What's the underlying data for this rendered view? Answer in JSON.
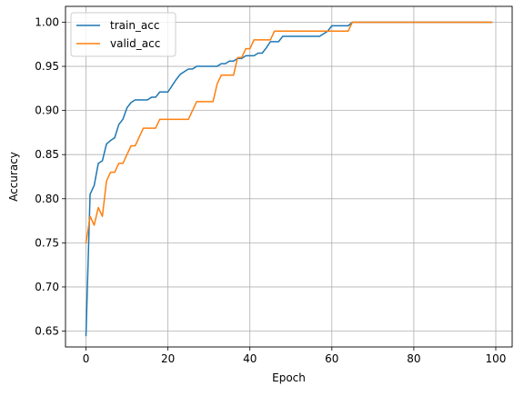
{
  "chart_data": {
    "type": "line",
    "title": "",
    "xlabel": "Epoch",
    "ylabel": "Accuracy",
    "xlim": [
      -5,
      104
    ],
    "ylim": [
      0.632,
      1.018
    ],
    "xticks": [
      0,
      20,
      40,
      60,
      80,
      100
    ],
    "xtick_labels": [
      "0",
      "20",
      "40",
      "60",
      "80",
      "100"
    ],
    "yticks": [
      0.65,
      0.7,
      0.75,
      0.8,
      0.85,
      0.9,
      0.95,
      1.0
    ],
    "ytick_labels": [
      "0.65",
      "0.70",
      "0.75",
      "0.80",
      "0.85",
      "0.90",
      "0.95",
      "1.00"
    ],
    "grid": true,
    "legend_position": "upper left",
    "series": [
      {
        "name": "train_acc",
        "color": "#1f77b4",
        "x": [
          0,
          1,
          2,
          3,
          4,
          5,
          6,
          7,
          8,
          9,
          10,
          11,
          12,
          13,
          14,
          15,
          16,
          17,
          18,
          19,
          20,
          21,
          22,
          23,
          24,
          25,
          26,
          27,
          28,
          29,
          30,
          31,
          32,
          33,
          34,
          35,
          36,
          37,
          38,
          39,
          40,
          41,
          42,
          43,
          44,
          45,
          46,
          47,
          48,
          49,
          50,
          51,
          52,
          53,
          54,
          55,
          56,
          57,
          58,
          59,
          60,
          61,
          62,
          63,
          64,
          65,
          66,
          67,
          68,
          69,
          70,
          71,
          72,
          73,
          74,
          75,
          76,
          77,
          78,
          79,
          80,
          81,
          82,
          83,
          84,
          85,
          86,
          87,
          88,
          89,
          90,
          91,
          92,
          93,
          94,
          95,
          96,
          97,
          98,
          99
        ],
        "y": [
          0.645,
          0.805,
          0.815,
          0.84,
          0.843,
          0.862,
          0.866,
          0.869,
          0.884,
          0.89,
          0.903,
          0.909,
          0.912,
          0.912,
          0.912,
          0.912,
          0.915,
          0.915,
          0.921,
          0.921,
          0.921,
          0.928,
          0.935,
          0.941,
          0.944,
          0.947,
          0.947,
          0.95,
          0.95,
          0.95,
          0.95,
          0.95,
          0.95,
          0.953,
          0.953,
          0.956,
          0.956,
          0.959,
          0.959,
          0.962,
          0.962,
          0.962,
          0.965,
          0.965,
          0.971,
          0.978,
          0.978,
          0.978,
          0.984,
          0.984,
          0.984,
          0.984,
          0.984,
          0.984,
          0.984,
          0.984,
          0.984,
          0.984,
          0.987,
          0.99,
          0.996,
          0.996,
          0.996,
          0.996,
          0.996,
          1.0,
          1.0,
          1.0,
          1.0,
          1.0,
          1.0,
          1.0,
          1.0,
          1.0,
          1.0,
          1.0,
          1.0,
          1.0,
          1.0,
          1.0,
          1.0,
          1.0,
          1.0,
          1.0,
          1.0,
          1.0,
          1.0,
          1.0,
          1.0,
          1.0,
          1.0,
          1.0,
          1.0,
          1.0,
          1.0,
          1.0,
          1.0,
          1.0,
          1.0,
          1.0
        ]
      },
      {
        "name": "valid_acc",
        "color": "#ff7f0e",
        "x": [
          0,
          1,
          2,
          3,
          4,
          5,
          6,
          7,
          8,
          9,
          10,
          11,
          12,
          13,
          14,
          15,
          16,
          17,
          18,
          19,
          20,
          21,
          22,
          23,
          24,
          25,
          26,
          27,
          28,
          29,
          30,
          31,
          32,
          33,
          34,
          35,
          36,
          37,
          38,
          39,
          40,
          41,
          42,
          43,
          44,
          45,
          46,
          47,
          48,
          49,
          50,
          51,
          52,
          53,
          54,
          55,
          56,
          57,
          58,
          59,
          60,
          61,
          62,
          63,
          64,
          65,
          66,
          67,
          68,
          69,
          70,
          71,
          72,
          73,
          74,
          75,
          76,
          77,
          78,
          79,
          80,
          81,
          82,
          83,
          84,
          85,
          86,
          87,
          88,
          89,
          90,
          91,
          92,
          93,
          94,
          95,
          96,
          97,
          98,
          99
        ],
        "y": [
          0.75,
          0.78,
          0.77,
          0.79,
          0.78,
          0.82,
          0.83,
          0.83,
          0.84,
          0.84,
          0.85,
          0.86,
          0.86,
          0.87,
          0.88,
          0.88,
          0.88,
          0.88,
          0.89,
          0.89,
          0.89,
          0.89,
          0.89,
          0.89,
          0.89,
          0.89,
          0.9,
          0.91,
          0.91,
          0.91,
          0.91,
          0.91,
          0.93,
          0.94,
          0.94,
          0.94,
          0.94,
          0.96,
          0.96,
          0.97,
          0.97,
          0.98,
          0.98,
          0.98,
          0.98,
          0.98,
          0.99,
          0.99,
          0.99,
          0.99,
          0.99,
          0.99,
          0.99,
          0.99,
          0.99,
          0.99,
          0.99,
          0.99,
          0.99,
          0.99,
          0.99,
          0.99,
          0.99,
          0.99,
          0.99,
          1.0,
          1.0,
          1.0,
          1.0,
          1.0,
          1.0,
          1.0,
          1.0,
          1.0,
          1.0,
          1.0,
          1.0,
          1.0,
          1.0,
          1.0,
          1.0,
          1.0,
          1.0,
          1.0,
          1.0,
          1.0,
          1.0,
          1.0,
          1.0,
          1.0,
          1.0,
          1.0,
          1.0,
          1.0,
          1.0,
          1.0,
          1.0,
          1.0,
          1.0,
          1.0
        ]
      }
    ]
  }
}
